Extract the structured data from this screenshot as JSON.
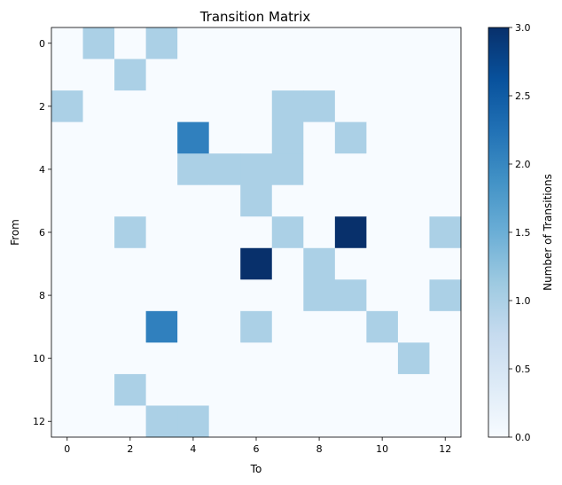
{
  "chart_data": {
    "type": "heatmap",
    "title": "Transition Matrix",
    "xlabel": "To",
    "ylabel": "From",
    "x_ticks": [
      0,
      2,
      4,
      6,
      8,
      10,
      12
    ],
    "y_ticks": [
      0,
      2,
      4,
      6,
      8,
      10,
      12
    ],
    "x_categories": [
      0,
      1,
      2,
      3,
      4,
      5,
      6,
      7,
      8,
      9,
      10,
      11,
      12
    ],
    "y_categories": [
      0,
      1,
      2,
      3,
      4,
      5,
      6,
      7,
      8,
      9,
      10,
      11,
      12
    ],
    "values": [
      [
        0,
        1,
        0,
        1,
        0,
        0,
        0,
        0,
        0,
        0,
        0,
        0,
        0
      ],
      [
        0,
        0,
        1,
        0,
        0,
        0,
        0,
        0,
        0,
        0,
        0,
        0,
        0
      ],
      [
        1,
        0,
        0,
        0,
        0,
        0,
        0,
        1,
        1,
        0,
        0,
        0,
        0
      ],
      [
        0,
        0,
        0,
        0,
        2,
        0,
        0,
        1,
        0,
        1,
        0,
        0,
        0
      ],
      [
        0,
        0,
        0,
        0,
        1,
        1,
        1,
        1,
        0,
        0,
        0,
        0,
        0
      ],
      [
        0,
        0,
        0,
        0,
        0,
        0,
        1,
        0,
        0,
        0,
        0,
        0,
        0
      ],
      [
        0,
        0,
        1,
        0,
        0,
        0,
        0,
        1,
        0,
        3,
        0,
        0,
        1
      ],
      [
        0,
        0,
        0,
        0,
        0,
        0,
        3,
        0,
        1,
        0,
        0,
        0,
        0
      ],
      [
        0,
        0,
        0,
        0,
        0,
        0,
        0,
        0,
        1,
        1,
        0,
        0,
        1
      ],
      [
        0,
        0,
        0,
        2,
        0,
        0,
        1,
        0,
        0,
        0,
        1,
        0,
        0
      ],
      [
        0,
        0,
        0,
        0,
        0,
        0,
        0,
        0,
        0,
        0,
        0,
        1,
        0
      ],
      [
        0,
        0,
        1,
        0,
        0,
        0,
        0,
        0,
        0,
        0,
        0,
        0,
        0
      ],
      [
        0,
        0,
        0,
        1,
        1,
        0,
        0,
        0,
        0,
        0,
        0,
        0,
        0
      ]
    ],
    "colorbar": {
      "label": "Number of Transitions",
      "range": [
        0,
        3
      ],
      "ticks": [
        "0.0",
        "0.5",
        "1.0",
        "1.5",
        "2.0",
        "2.5",
        "3.0"
      ],
      "colormap": "Blues"
    },
    "colors": {
      "0": "#f7fbff",
      "1": "#abd0e6",
      "2": "#3080be",
      "3": "#08306b"
    },
    "grid": false
  }
}
